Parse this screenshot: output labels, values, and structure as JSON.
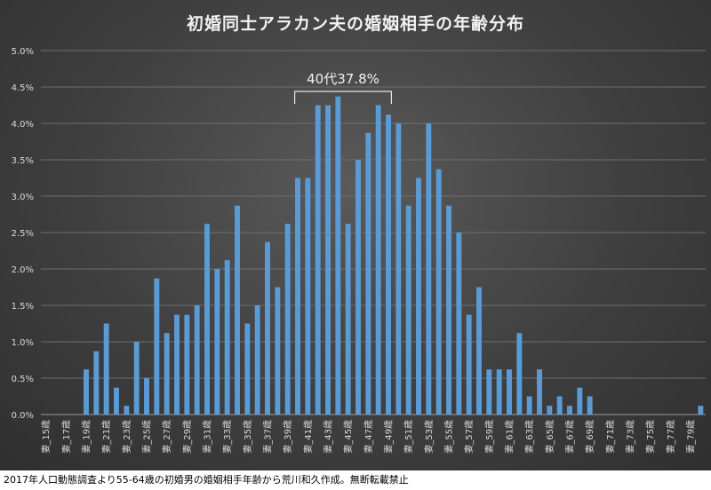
{
  "chart_data": {
    "type": "bar",
    "title": "初婚同士アラカン夫の婚姻相手の年齢分布",
    "xlabel": "",
    "ylabel": "",
    "ylim": [
      0,
      5.0
    ],
    "yticks": [
      "0.0%",
      "0.5%",
      "1.0%",
      "1.5%",
      "2.0%",
      "2.5%",
      "3.0%",
      "3.5%",
      "4.0%",
      "4.5%",
      "5.0%"
    ],
    "categories": [
      "妻_15歳",
      "妻_16歳",
      "妻_17歳",
      "妻_18歳",
      "妻_19歳",
      "妻_20歳",
      "妻_21歳",
      "妻_22歳",
      "妻_23歳",
      "妻_24歳",
      "妻_25歳",
      "妻_26歳",
      "妻_27歳",
      "妻_28歳",
      "妻_29歳",
      "妻_30歳",
      "妻_31歳",
      "妻_32歳",
      "妻_33歳",
      "妻_34歳",
      "妻_35歳",
      "妻_36歳",
      "妻_37歳",
      "妻_38歳",
      "妻_39歳",
      "妻_40歳",
      "妻_41歳",
      "妻_42歳",
      "妻_43歳",
      "妻_44歳",
      "妻_45歳",
      "妻_46歳",
      "妻_47歳",
      "妻_48歳",
      "妻_49歳",
      "妻_50歳",
      "妻_51歳",
      "妻_52歳",
      "妻_53歳",
      "妻_54歳",
      "妻_55歳",
      "妻_56歳",
      "妻_57歳",
      "妻_58歳",
      "妻_59歳",
      "妻_60歳",
      "妻_61歳",
      "妻_62歳",
      "妻_63歳",
      "妻_64歳",
      "妻_65歳",
      "妻_66歳",
      "妻_67歳",
      "妻_68歳",
      "妻_69歳",
      "妻_70歳",
      "妻_71歳",
      "妻_72歳",
      "妻_73歳",
      "妻_74歳",
      "妻_75歳",
      "妻_76歳",
      "妻_77歳",
      "妻_78歳",
      "妻_79歳",
      "妻_80歳"
    ],
    "visible_tick_labels": [
      "妻_15歳",
      "妻_17歳",
      "妻_19歳",
      "妻_21歳",
      "妻_23歳",
      "妻_25歳",
      "妻_27歳",
      "妻_29歳",
      "妻_31歳",
      "妻_33歳",
      "妻_35歳",
      "妻_37歳",
      "妻_39歳",
      "妻_41歳",
      "妻_43歳",
      "妻_45歳",
      "妻_47歳",
      "妻_49歳",
      "妻_51歳",
      "妻_53歳",
      "妻_55歳",
      "妻_57歳",
      "妻_59歳",
      "妻_61歳",
      "妻_63歳",
      "妻_65歳",
      "妻_67歳",
      "妻_69歳",
      "妻_71歳",
      "妻_73歳",
      "妻_75歳",
      "妻_77歳",
      "妻_79歳"
    ],
    "values": [
      0,
      0,
      0,
      0,
      0.62,
      0.87,
      1.25,
      0.37,
      0.12,
      1.0,
      0.5,
      1.87,
      1.12,
      1.37,
      1.37,
      1.5,
      2.62,
      2.0,
      2.12,
      2.87,
      1.25,
      1.5,
      2.37,
      1.75,
      2.62,
      3.25,
      3.25,
      4.25,
      4.25,
      4.37,
      2.62,
      3.5,
      3.87,
      4.25,
      4.12,
      4.0,
      2.87,
      3.25,
      4.0,
      3.37,
      2.87,
      2.5,
      1.37,
      1.75,
      0.62,
      0.62,
      0.62,
      1.12,
      0.25,
      0.62,
      0.12,
      0.25,
      0.12,
      0.37,
      0.25,
      0,
      0,
      0,
      0,
      0,
      0,
      0,
      0,
      0,
      0,
      0.12
    ],
    "annotation": {
      "text": "40代37.8%",
      "from_category": "妻_40歳",
      "to_category": "妻_49歳"
    },
    "grid": true,
    "legend": "none",
    "bar_color": "#5b9bd5"
  },
  "caption": "2017年人口動態調査より55-64歳の初婚男の婚姻相手年齢から荒川和久作成。無断転載禁止"
}
